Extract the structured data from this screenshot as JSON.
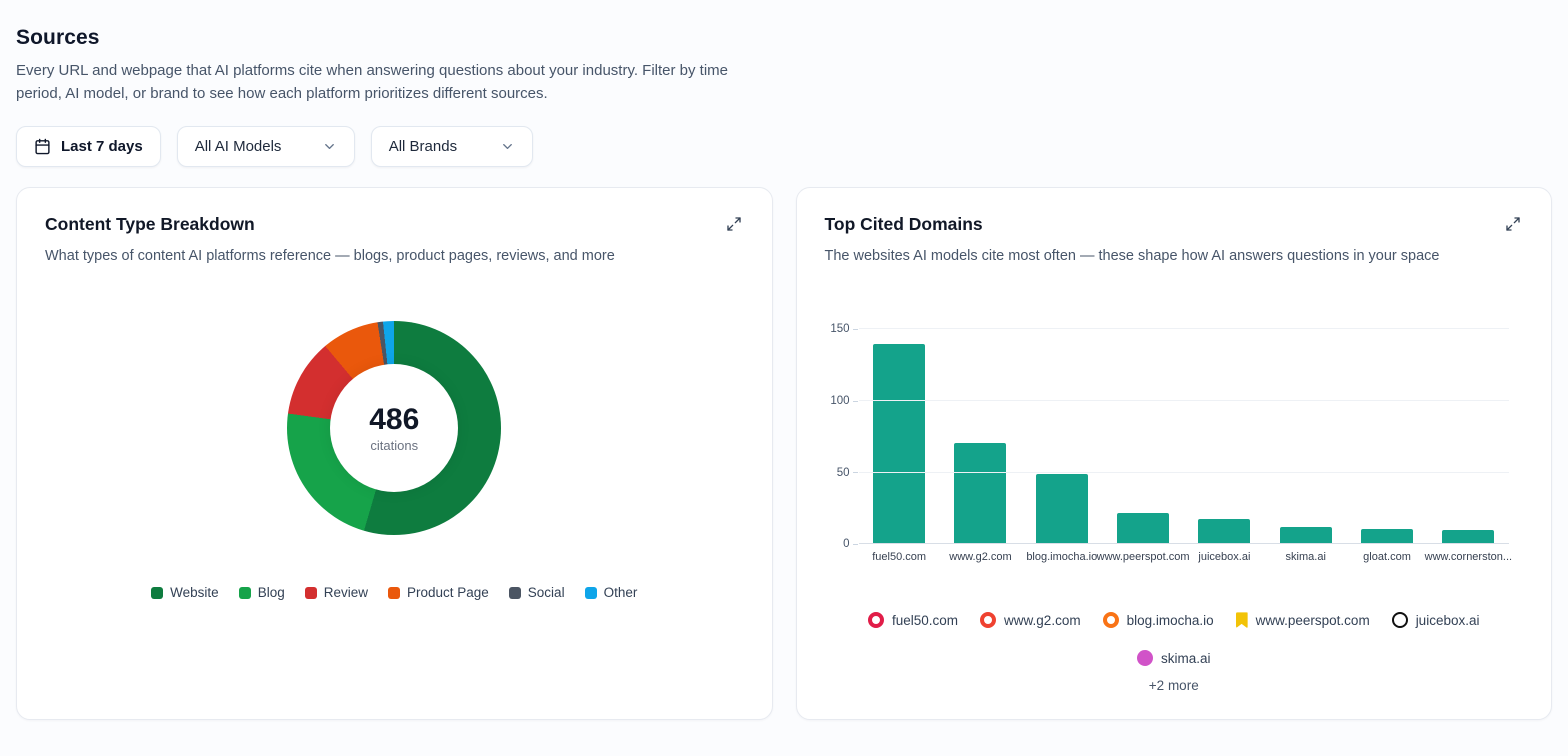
{
  "page": {
    "title": "Sources",
    "description": "Every URL and webpage that AI platforms cite when answering questions about your industry. Filter by time period, AI model, or brand to see how each platform prioritizes different sources."
  },
  "filters": {
    "date_range": "Last 7 days",
    "ai_model": "All AI Models",
    "brand": "All Brands"
  },
  "cards": {
    "content_type": {
      "title": "Content Type Breakdown",
      "subtitle": "What types of content AI platforms reference — blogs, product pages, reviews, and more"
    },
    "top_domains": {
      "title": "Top Cited Domains",
      "subtitle": "The websites AI models cite most often — these shape how AI answers questions in your space",
      "more_label": "+2 more"
    }
  },
  "chart_data": [
    {
      "type": "pie",
      "title": "Content Type Breakdown",
      "total": 486,
      "total_label": "citations",
      "legend_position": "bottom",
      "segments": [
        {
          "label": "Website",
          "value": 265,
          "color": "#0e7c3f"
        },
        {
          "label": "Blog",
          "value": 110,
          "color": "#16a34a"
        },
        {
          "label": "Review",
          "value": 57,
          "color": "#d32f2f"
        },
        {
          "label": "Product Page",
          "value": 42,
          "color": "#ea580c"
        },
        {
          "label": "Social",
          "value": 4,
          "color": "#4b5563"
        },
        {
          "label": "Other",
          "value": 8,
          "color": "#0ea5e9"
        }
      ]
    },
    {
      "type": "bar",
      "title": "Top Cited Domains",
      "categories": [
        "fuel50.com",
        "www.g2.com",
        "blog.imocha.io",
        "www.peerspot.com",
        "juicebox.ai",
        "skima.ai",
        "gloat.com",
        "www.cornerston..."
      ],
      "values": [
        140,
        71,
        49,
        22,
        18,
        12,
        11,
        10
      ],
      "ylim": [
        0,
        150
      ],
      "yticks": [
        0,
        50,
        100,
        150
      ],
      "bar_color": "#14a38b",
      "grid": true,
      "ylabel": "",
      "xlabel": ""
    }
  ],
  "domain_chips": [
    {
      "label": "fuel50.com",
      "color": "#e11d48",
      "shape": "ring",
      "icon": "fuel50-favicon-icon"
    },
    {
      "label": "www.g2.com",
      "color": "#ef4230",
      "shape": "ring",
      "icon": "g2-favicon-icon"
    },
    {
      "label": "blog.imocha.io",
      "color": "#f97316",
      "shape": "ring",
      "icon": "imocha-favicon-icon"
    },
    {
      "label": "www.peerspot.com",
      "color": "#f2c307",
      "shape": "flag",
      "icon": "peerspot-favicon-icon"
    },
    {
      "label": "juicebox.ai",
      "color": "#111111",
      "shape": "thinring",
      "icon": "juicebox-favicon-icon"
    },
    {
      "label": "skima.ai",
      "color": "#d153c8",
      "shape": "dot",
      "icon": "skima-favicon-icon"
    }
  ]
}
